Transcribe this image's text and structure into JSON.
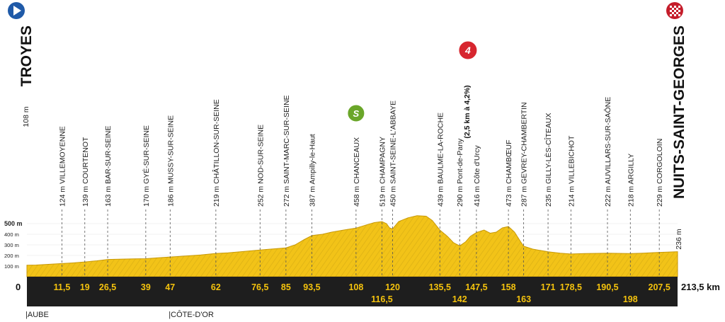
{
  "chart_data": {
    "type": "area",
    "title": "",
    "start": {
      "name": "TROYES",
      "alt": "108 m"
    },
    "finish": {
      "name": "NUITS-SAINT-GEORGES",
      "alt": "236 m"
    },
    "total_distance": "213,5 km",
    "zero_label": "0",
    "xlim": [
      0,
      213.5
    ],
    "ylim": [
      0,
      550
    ],
    "y_ticks": [
      {
        "value": 100,
        "label": "100 m"
      },
      {
        "value": 200,
        "label": "200 m"
      },
      {
        "value": 300,
        "label": "300 m"
      },
      {
        "value": 400,
        "label": "400 m"
      },
      {
        "value": 500,
        "label": "500 m"
      }
    ],
    "points": [
      {
        "km": 11.5,
        "km_label": "11,5",
        "alt": 124,
        "label": "124 m VILLEMOYENNE",
        "row": "top"
      },
      {
        "km": 19,
        "km_label": "19",
        "alt": 139,
        "label": "139 m COURTENOT",
        "row": "top"
      },
      {
        "km": 26.5,
        "km_label": "26,5",
        "alt": 163,
        "label": "163 m BAR-SUR-SEINE",
        "row": "top"
      },
      {
        "km": 39,
        "km_label": "39",
        "alt": 170,
        "label": "170 m GYÉ-SUR-SEINE",
        "row": "top"
      },
      {
        "km": 47,
        "km_label": "47",
        "alt": 186,
        "label": "186 m MUSSY-SUR-SEINE",
        "row": "top"
      },
      {
        "km": 62,
        "km_label": "62",
        "alt": 219,
        "label": "219 m CHÂTILLON-SUR-SEINE",
        "row": "top"
      },
      {
        "km": 76.5,
        "km_label": "76,5",
        "alt": 252,
        "label": "252 m NOD-SUR-SEINE",
        "row": "top"
      },
      {
        "km": 85,
        "km_label": "85",
        "alt": 272,
        "label": "272 m SAINT-MARC-SUR-SEINE",
        "row": "top"
      },
      {
        "km": 93.5,
        "km_label": "93,5",
        "alt": 387,
        "label": "387 m Ampilly-le-Haut",
        "row": "top"
      },
      {
        "km": 108,
        "km_label": "108",
        "alt": 458,
        "label": "458 m CHANCEAUX",
        "row": "top"
      },
      {
        "km": 116.5,
        "km_label": "116,5",
        "alt": 519,
        "label": "519 m CHAMPAGNY",
        "row": "bottom"
      },
      {
        "km": 120,
        "km_label": "120",
        "alt": 450,
        "label": "450 m SAINT-SEINE-L'ABBAYE",
        "row": "top"
      },
      {
        "km": 135.5,
        "km_label": "135,5",
        "alt": 439,
        "label": "439 m BAULME-LA-ROCHE",
        "row": "top"
      },
      {
        "km": 142,
        "km_label": "142",
        "alt": 290,
        "label": "290 m Pont-de-Pany",
        "row": "bottom"
      },
      {
        "km": 147.5,
        "km_label": "147,5",
        "alt": 416,
        "label": "416 m Côte d'Urcy",
        "row": "top"
      },
      {
        "km": 158,
        "km_label": "158",
        "alt": 473,
        "label": "473 m CHAMBŒUF",
        "row": "top"
      },
      {
        "km": 163,
        "km_label": "163",
        "alt": 287,
        "label": "287 m GEVREY-CHAMBERTIN",
        "row": "bottom"
      },
      {
        "km": 171,
        "km_label": "171",
        "alt": 235,
        "label": "235 m GILLY-LÈS-CÎTEAUX",
        "row": "top"
      },
      {
        "km": 178.5,
        "km_label": "178,5",
        "alt": 214,
        "label": "214 m VILLEBICHOT",
        "row": "top"
      },
      {
        "km": 190.5,
        "km_label": "190,5",
        "alt": 222,
        "label": "222 m AUVILLARS-SUR-SAÔNE",
        "row": "top"
      },
      {
        "km": 198,
        "km_label": "198",
        "alt": 218,
        "label": "218 m ARGILLY",
        "row": "bottom"
      },
      {
        "km": 207.5,
        "km_label": "207,5",
        "alt": 229,
        "label": "229 m CORGOLOIN",
        "row": "top"
      }
    ],
    "climb": {
      "km": 147.5,
      "category": "4",
      "detail": "(2,5 km à 4,2%)"
    },
    "sprint": {
      "km": 108,
      "symbol": "S"
    },
    "profile": [
      [
        0,
        108
      ],
      [
        3,
        110
      ],
      [
        6,
        115
      ],
      [
        9,
        120
      ],
      [
        11.5,
        124
      ],
      [
        15,
        130
      ],
      [
        19,
        139
      ],
      [
        23,
        150
      ],
      [
        26.5,
        163
      ],
      [
        30,
        165
      ],
      [
        35,
        168
      ],
      [
        39,
        170
      ],
      [
        43,
        178
      ],
      [
        47,
        186
      ],
      [
        52,
        195
      ],
      [
        57,
        205
      ],
      [
        62,
        219
      ],
      [
        66,
        225
      ],
      [
        70,
        235
      ],
      [
        76.5,
        252
      ],
      [
        80,
        260
      ],
      [
        85,
        272
      ],
      [
        88,
        300
      ],
      [
        91,
        350
      ],
      [
        93.5,
        387
      ],
      [
        97,
        400
      ],
      [
        100,
        420
      ],
      [
        104,
        440
      ],
      [
        108,
        458
      ],
      [
        111,
        485
      ],
      [
        114,
        510
      ],
      [
        116.5,
        519
      ],
      [
        118,
        500
      ],
      [
        119,
        460
      ],
      [
        120,
        450
      ],
      [
        122,
        520
      ],
      [
        125,
        555
      ],
      [
        128,
        575
      ],
      [
        131,
        570
      ],
      [
        133,
        530
      ],
      [
        135.5,
        439
      ],
      [
        138,
        380
      ],
      [
        140,
        320
      ],
      [
        142,
        290
      ],
      [
        144,
        330
      ],
      [
        145.5,
        380
      ],
      [
        147.5,
        416
      ],
      [
        150,
        440
      ],
      [
        152,
        410
      ],
      [
        154,
        420
      ],
      [
        156,
        460
      ],
      [
        158,
        473
      ],
      [
        160,
        420
      ],
      [
        162,
        330
      ],
      [
        163,
        287
      ],
      [
        166,
        260
      ],
      [
        171,
        235
      ],
      [
        175,
        222
      ],
      [
        178.5,
        214
      ],
      [
        183,
        218
      ],
      [
        187,
        220
      ],
      [
        190.5,
        222
      ],
      [
        194,
        220
      ],
      [
        198,
        218
      ],
      [
        202,
        222
      ],
      [
        205,
        226
      ],
      [
        207.5,
        229
      ],
      [
        210,
        232
      ],
      [
        213.5,
        236
      ]
    ],
    "regions": [
      {
        "km": 0,
        "label": "|AUBE"
      },
      {
        "km": 47,
        "label": "|CÔTE-D'OR"
      }
    ],
    "colors": {
      "profile_fill": "#f2c318",
      "profile_edge": "#c99a08",
      "band": "#1e1e1e",
      "km_text": "#f4c20d",
      "start_icon": "#1f5aa8",
      "finish_icon": "#c51d2b",
      "climb_badge": "#d7262f",
      "sprint_badge": "#6aa629"
    }
  }
}
